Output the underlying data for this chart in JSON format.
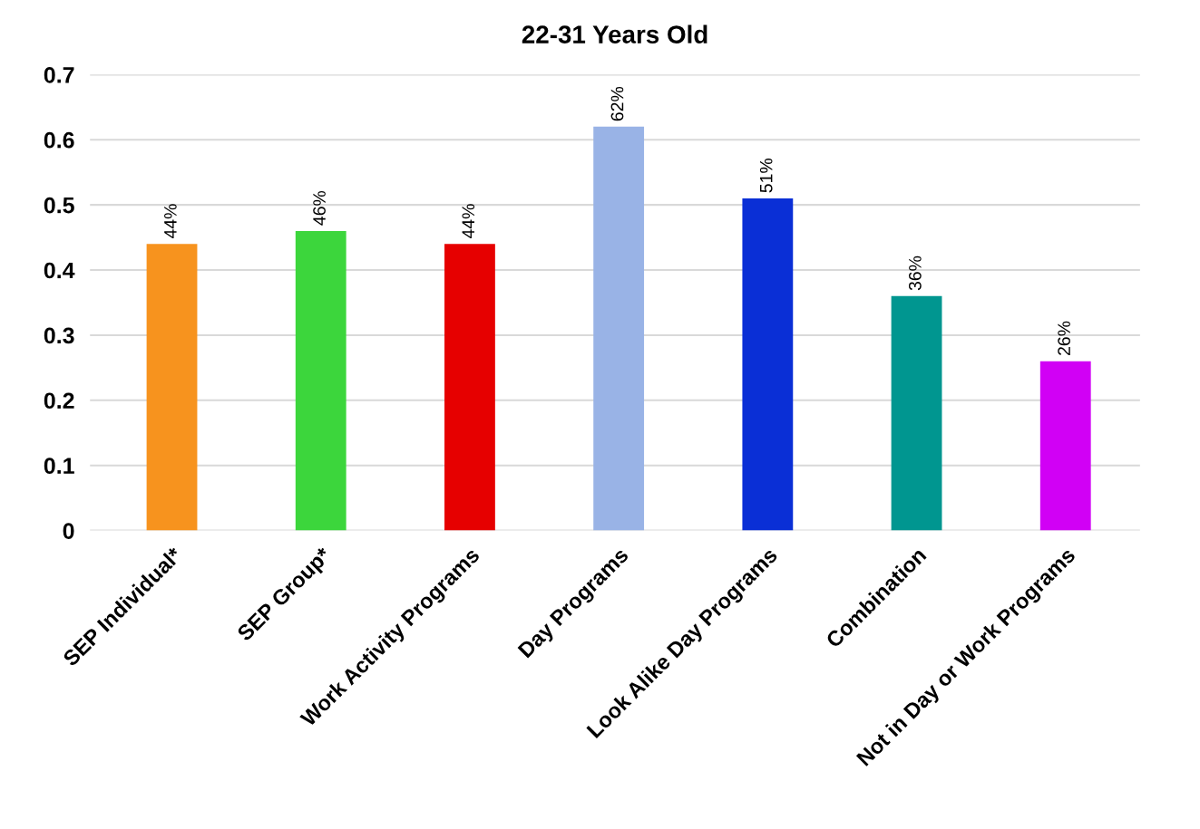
{
  "chart_data": {
    "type": "bar",
    "title": "22-31 Years Old",
    "categories": [
      "SEP Individual*",
      "SEP Group*",
      "Work Activity Programs",
      "Day Programs",
      "Look Alike Day Programs",
      "Combination",
      "Not in Day or Work Programs"
    ],
    "values": [
      0.44,
      0.46,
      0.44,
      0.62,
      0.51,
      0.36,
      0.26
    ],
    "value_labels": [
      "44%",
      "46%",
      "44%",
      "62%",
      "51%",
      "36%",
      "26%"
    ],
    "colors": [
      "#f7931e",
      "#3cd63c",
      "#e60000",
      "#99b3e6",
      "#0a2fd6",
      "#009690",
      "#d100f5"
    ],
    "ylim": [
      0,
      0.7
    ],
    "yticks": [
      0,
      0.1,
      0.2,
      0.3,
      0.4,
      0.5,
      0.6,
      0.7
    ],
    "grid": "y"
  }
}
